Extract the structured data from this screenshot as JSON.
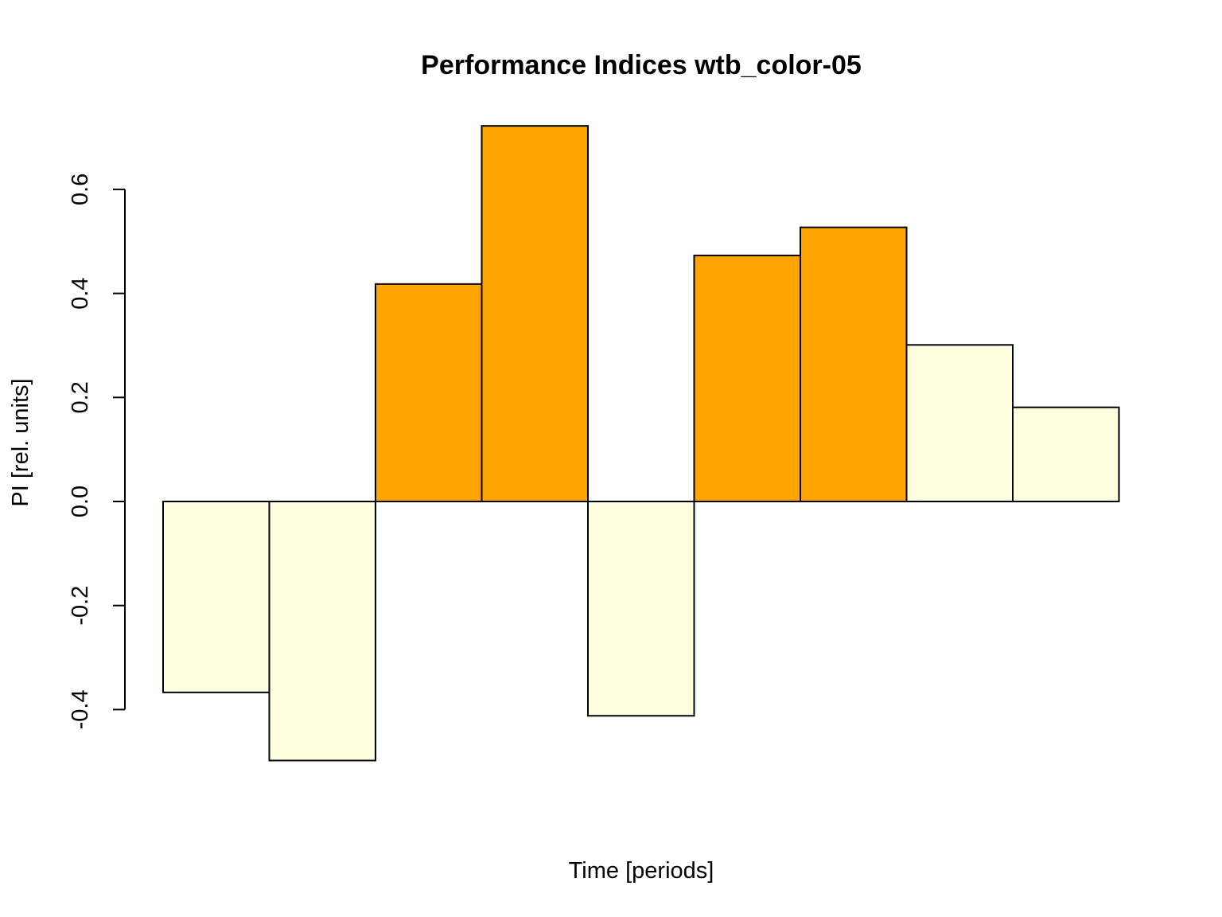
{
  "chart_data": {
    "type": "bar",
    "title": "Performance Indices wtb_color-05",
    "xlabel": "Time [periods]",
    "ylabel": "PI [rel. units]",
    "ylim": [
      -0.5,
      0.72
    ],
    "yticks": [
      -0.4,
      -0.2,
      0.0,
      0.2,
      0.4,
      0.6
    ],
    "ytick_labels": [
      "-0.4",
      "-0.2",
      "0.0",
      "0.2",
      "0.4",
      "0.6"
    ],
    "series": [
      {
        "values": [
          -0.367,
          -0.498,
          0.418,
          0.722,
          -0.412,
          0.473,
          0.527,
          0.301,
          0.181
        ]
      }
    ],
    "bar_colors": [
      "#FFFFE0",
      "#FFFFE0",
      "#FFA500",
      "#FFA500",
      "#FFFFE0",
      "#FFA500",
      "#FFA500",
      "#FFFFE0",
      "#FFFFE0"
    ],
    "grid": false,
    "legend": "none"
  }
}
